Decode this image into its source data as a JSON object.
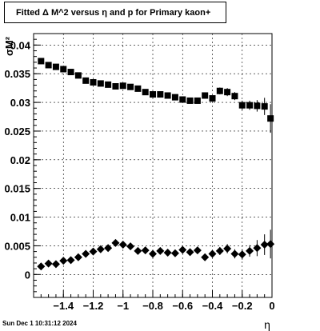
{
  "title": "Fitted Δ M^2 versus η and p for Primary kaon+",
  "timestamp": "Sun Dec  1 10:31:12 2024",
  "chart_data": {
    "type": "scatter",
    "xlabel": "η",
    "ylabel": "σM²",
    "xlim": [
      -1.6,
      0.0
    ],
    "ylim": [
      -0.004,
      0.042
    ],
    "x_ticks": [
      -1.4,
      -1.2,
      -1,
      -0.8,
      -0.6,
      -0.4,
      -0.2,
      0
    ],
    "x_tick_labels": [
      "−1.4",
      "−1.2",
      "−1",
      "−0.8",
      "−0.6",
      "−0.4",
      "−0.2",
      "0"
    ],
    "y_ticks": [
      0,
      0.005,
      0.01,
      0.015,
      0.02,
      0.025,
      0.03,
      0.035,
      0.04
    ],
    "y_tick_labels": [
      "0",
      "0.005",
      "0.01",
      "0.015",
      "0.02",
      "0.025",
      "0.03",
      "0.035",
      "0.04"
    ],
    "grid": true,
    "series": [
      {
        "marker": "square",
        "color": "#000000",
        "x": [
          -1.55,
          -1.5,
          -1.45,
          -1.4,
          -1.35,
          -1.3,
          -1.25,
          -1.2,
          -1.15,
          -1.1,
          -1.05,
          -1.0,
          -0.95,
          -0.9,
          -0.85,
          -0.8,
          -0.75,
          -0.7,
          -0.65,
          -0.6,
          -0.55,
          -0.5,
          -0.45,
          -0.4,
          -0.35,
          -0.3,
          -0.25,
          -0.2,
          -0.15,
          -0.1,
          -0.05,
          -0.01
        ],
        "y": [
          0.0372,
          0.0365,
          0.0362,
          0.0358,
          0.0353,
          0.0347,
          0.0338,
          0.0335,
          0.0333,
          0.0331,
          0.0328,
          0.0329,
          0.0327,
          0.0324,
          0.0318,
          0.0314,
          0.0314,
          0.0312,
          0.0309,
          0.0305,
          0.0303,
          0.0303,
          0.0312,
          0.0307,
          0.032,
          0.0318,
          0.0311,
          0.0295,
          0.0295,
          0.0294,
          0.0293,
          0.0272
        ],
        "yerr": [
          0.0005,
          0.0005,
          0.0004,
          0.0004,
          0.0004,
          0.0004,
          0.0004,
          0.0004,
          0.0004,
          0.0004,
          0.0004,
          0.0004,
          0.0004,
          0.0004,
          0.0004,
          0.0004,
          0.0004,
          0.0004,
          0.0004,
          0.0005,
          0.0005,
          0.0005,
          0.0005,
          0.0005,
          0.0006,
          0.0007,
          0.0007,
          0.0008,
          0.0008,
          0.001,
          0.0015,
          0.0025
        ]
      },
      {
        "marker": "diamond",
        "color": "#000000",
        "x": [
          -1.55,
          -1.5,
          -1.45,
          -1.4,
          -1.35,
          -1.3,
          -1.25,
          -1.2,
          -1.15,
          -1.1,
          -1.05,
          -1.0,
          -0.95,
          -0.9,
          -0.85,
          -0.8,
          -0.75,
          -0.7,
          -0.65,
          -0.6,
          -0.55,
          -0.5,
          -0.45,
          -0.4,
          -0.35,
          -0.3,
          -0.25,
          -0.2,
          -0.15,
          -0.1,
          -0.05,
          -0.01
        ],
        "y": [
          0.0014,
          0.0019,
          0.0018,
          0.0024,
          0.0025,
          0.003,
          0.0036,
          0.004,
          0.0044,
          0.0046,
          0.0055,
          0.0052,
          0.0049,
          0.0041,
          0.0042,
          0.0036,
          0.0041,
          0.0038,
          0.0037,
          0.0043,
          0.0039,
          0.0042,
          0.003,
          0.0036,
          0.0041,
          0.0045,
          0.0036,
          0.0035,
          0.0041,
          0.0046,
          0.0052,
          0.0053
        ],
        "yerr": [
          0.0004,
          0.0004,
          0.0004,
          0.0004,
          0.0004,
          0.0004,
          0.0004,
          0.0004,
          0.0004,
          0.0004,
          0.0005,
          0.0005,
          0.0005,
          0.0005,
          0.0005,
          0.0005,
          0.0005,
          0.0005,
          0.0005,
          0.0005,
          0.0006,
          0.0006,
          0.0006,
          0.0006,
          0.0007,
          0.0008,
          0.0008,
          0.0009,
          0.001,
          0.0014,
          0.0018,
          0.0025
        ]
      }
    ]
  }
}
